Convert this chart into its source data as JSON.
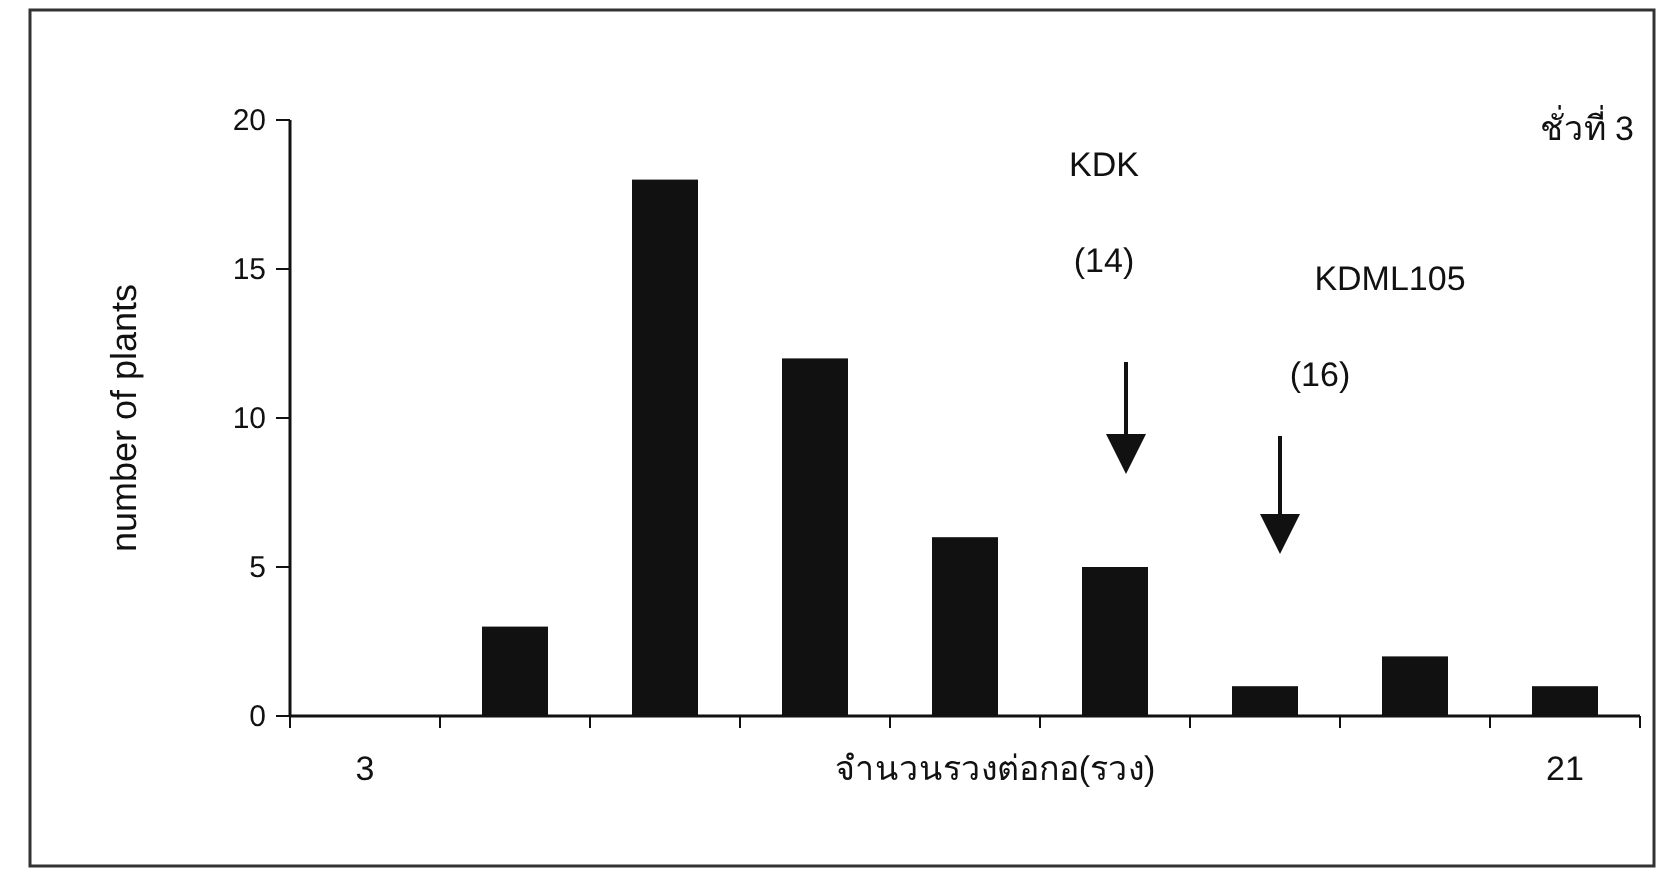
{
  "chart_data": {
    "type": "bar",
    "categories": [
      "3",
      null,
      null,
      null,
      null,
      null,
      null,
      null,
      "21"
    ],
    "values": [
      0,
      3,
      18,
      12,
      6,
      5,
      1,
      2,
      1
    ],
    "color": "#111111",
    "ylim": [
      0,
      20
    ],
    "yticks": [
      0,
      5,
      10,
      15,
      20
    ],
    "ylabel": "number of plants",
    "xlabel": "จำนวนรวงต่อกอ(รวง)",
    "annotations": [
      "ชั่วที่ 3",
      "KDK",
      "(14)",
      "KDML105",
      "(16)"
    ],
    "grid": false
  }
}
